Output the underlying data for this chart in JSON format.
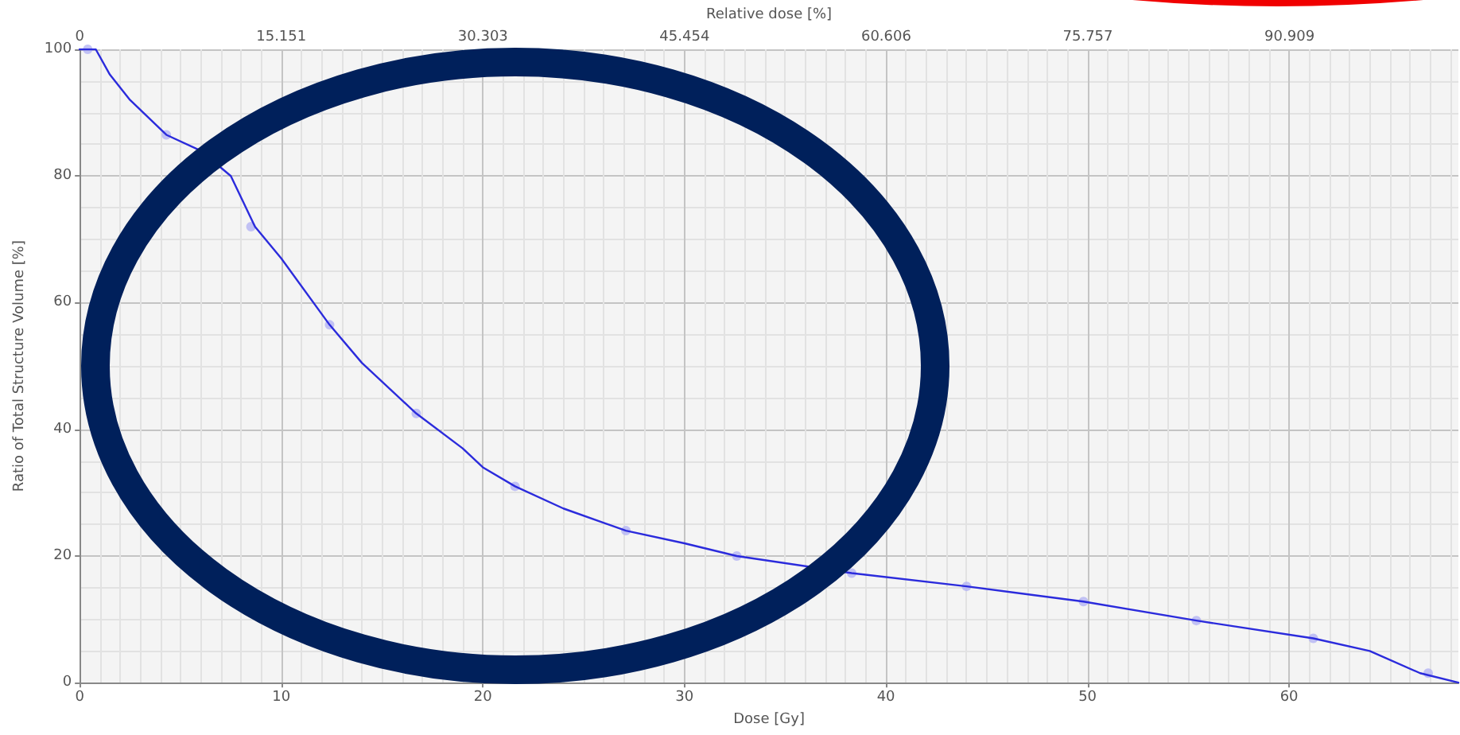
{
  "chart_data": {
    "type": "line",
    "xlabel": "Dose [Gy]",
    "ylabel": "Ratio of Total Structure Volume [%]",
    "x2label": "Relative dose [%]",
    "xlim": [
      0,
      68.4
    ],
    "xticks": [
      0,
      10,
      20,
      30,
      40,
      50,
      60
    ],
    "ylim": [
      0,
      100
    ],
    "yticks": [
      0,
      20,
      40,
      60,
      80,
      100
    ],
    "x2lim": [
      0,
      103.6
    ],
    "x2ticks": [
      0,
      15.151,
      30.303,
      45.454,
      60.606,
      75.757,
      90.909
    ],
    "grid": true,
    "series": [
      {
        "color": "#2b2bdc",
        "marker": "none",
        "line_style": "solid",
        "x": [
          0,
          0.8,
          1.5,
          2.5,
          4.3,
          6,
          7.5,
          8.7,
          10,
          12.4,
          14,
          16.7,
          19,
          20,
          21.6,
          24,
          27.1,
          30,
          32.6,
          38.3,
          44,
          49.8,
          55.4,
          61.2,
          64,
          66.5,
          68.4
        ],
        "values": [
          100,
          100,
          96,
          92,
          86.5,
          84,
          80,
          72,
          67,
          56.5,
          50.5,
          42.5,
          37,
          34,
          31,
          27.5,
          24,
          22,
          20,
          17.3,
          15.2,
          12.8,
          9.8,
          7,
          5,
          1.5,
          0
        ]
      },
      {
        "type": "scatter",
        "color": "#b4b4f4",
        "marker": "circle",
        "x": [
          0.4,
          4.3,
          8.5,
          12.4,
          16.7,
          21.6,
          27.1,
          32.6,
          38.3,
          44,
          49.8,
          55.4,
          61.2,
          66.9
        ],
        "values": [
          100,
          86.5,
          72,
          56.5,
          42.5,
          31,
          24,
          20,
          17.3,
          15.2,
          12.8,
          9.8,
          7,
          1.5
        ]
      }
    ]
  }
}
